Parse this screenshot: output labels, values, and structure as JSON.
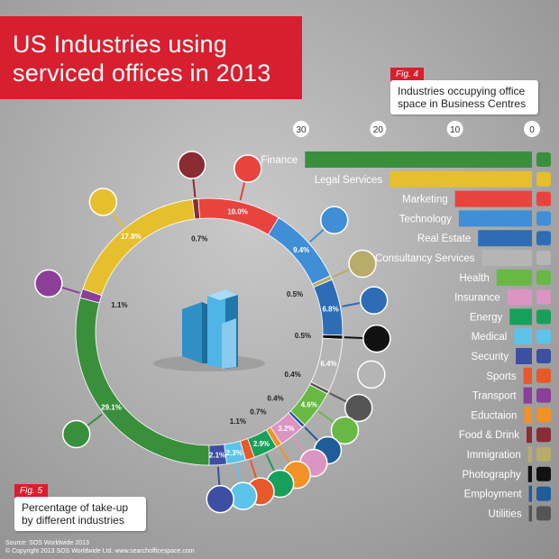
{
  "title": {
    "line1": "US Industries using",
    "line2": "serviced offices in 2013"
  },
  "fig4": {
    "tag": "Fig. 4",
    "caption_line1": "Industries occupying office",
    "caption_line2": "space in Business Centres"
  },
  "fig5": {
    "tag": "Fig. 5",
    "caption_line1": "Percentage of take-up",
    "caption_line2": "by different industries"
  },
  "footer": {
    "source": "Source: SOS Worldwide 2013",
    "copyright": "© Copyright 2013 SOS Worldwide Ltd. www.searchofficespace.com"
  },
  "colors": {
    "title_red": "#d81f2f",
    "background": "#a9a9a9"
  },
  "chart_data": [
    {
      "type": "bar",
      "orientation": "horizontal",
      "x_reversed": true,
      "xlim": [
        0,
        30
      ],
      "xticks": [
        30,
        20,
        10,
        0
      ],
      "categories": [
        "Finance",
        "Legal Services",
        "Marketing",
        "Technology",
        "Real Estate",
        "Consultancy Services",
        "Health",
        "Insurance",
        "Energy",
        "Medical",
        "Security",
        "Sports",
        "Transport",
        "Eductaion",
        "Food & Drink",
        "Immigration",
        "Photography",
        "Employment",
        "Utilities"
      ],
      "values": [
        29.5,
        18.5,
        10,
        9.5,
        7,
        6.5,
        4.6,
        3.2,
        2.9,
        2.3,
        2.1,
        1.1,
        1.1,
        1.0,
        0.7,
        0.5,
        0.5,
        0.4,
        0.4
      ],
      "colors": [
        "#3a8f3c",
        "#e5bf2e",
        "#e9433e",
        "#3f8ed6",
        "#2d6db5",
        "#b5b5b5",
        "#68b844",
        "#dc94c3",
        "#17a05b",
        "#5cc4ea",
        "#3d4fa2",
        "#e7582b",
        "#8b3f98",
        "#f19127",
        "#8b2b33",
        "#b8ac6a",
        "#111111",
        "#1f5c9a",
        "#555555"
      ],
      "icons": [
        "money-bag-icon",
        "gavel-icon",
        "megaphone-icon",
        "chip-icon",
        "key-icon",
        "speech-bubble-icon",
        "health-cross-icon",
        "umbrella-icon",
        "atom-icon",
        "syringe-icon",
        "shield-icon",
        "basketball-icon",
        "train-icon",
        "book-icon",
        "food-drink-icon",
        "passport-icon",
        "camera-icon",
        "briefcase-icon",
        "tools-icon"
      ]
    },
    {
      "type": "pie",
      "subtype": "donut",
      "slices": [
        {
          "label": "29.1%",
          "value": 29.1,
          "color": "#3a8f3c",
          "icon": "money-bag-icon"
        },
        {
          "label": "1.1%",
          "value": 1.1,
          "color": "#8b3f98",
          "icon": "train-icon"
        },
        {
          "label": "17.8%",
          "value": 17.8,
          "color": "#e5bf2e",
          "icon": "gavel-icon"
        },
        {
          "label": "0.7%",
          "value": 0.7,
          "color": "#8b2b33",
          "icon": "food-drink-icon"
        },
        {
          "label": "10.0%",
          "value": 10.0,
          "color": "#e9433e",
          "icon": "megaphone-icon"
        },
        {
          "label": "9.4%",
          "value": 9.4,
          "color": "#3f8ed6",
          "icon": "chip-icon"
        },
        {
          "label": "0.5%",
          "value": 0.5,
          "color": "#b8ac6a",
          "icon": "passport-icon"
        },
        {
          "label": "6.8%",
          "value": 6.8,
          "color": "#2d6db5",
          "icon": "key-icon"
        },
        {
          "label": "0.5%",
          "value": 0.5,
          "color": "#111111",
          "icon": "camera-icon"
        },
        {
          "label": "6.4%",
          "value": 6.4,
          "color": "#b5b5b5",
          "icon": "speech-bubble-icon"
        },
        {
          "label": "0.4%",
          "value": 0.4,
          "color": "#555555",
          "icon": "tools-icon"
        },
        {
          "label": "4.6%",
          "value": 4.6,
          "color": "#68b844",
          "icon": "health-cross-icon"
        },
        {
          "label": "0.4%",
          "value": 0.4,
          "color": "#1f5c9a",
          "icon": "briefcase-icon"
        },
        {
          "label": "3.2%",
          "value": 3.2,
          "color": "#dc94c3",
          "icon": "umbrella-icon"
        },
        {
          "label": "0.7%",
          "value": 0.7,
          "color": "#f19127",
          "icon": "book-icon"
        },
        {
          "label": "2.9%",
          "value": 2.9,
          "color": "#17a05b",
          "icon": "atom-icon"
        },
        {
          "label": "1.1%",
          "value": 1.1,
          "color": "#e7582b",
          "icon": "basketball-icon"
        },
        {
          "label": "2.3%",
          "value": 2.3,
          "color": "#5cc4ea",
          "icon": "syringe-icon"
        },
        {
          "label": "2.1%",
          "value": 2.1,
          "color": "#3d4fa2",
          "icon": "shield-icon"
        }
      ]
    }
  ]
}
